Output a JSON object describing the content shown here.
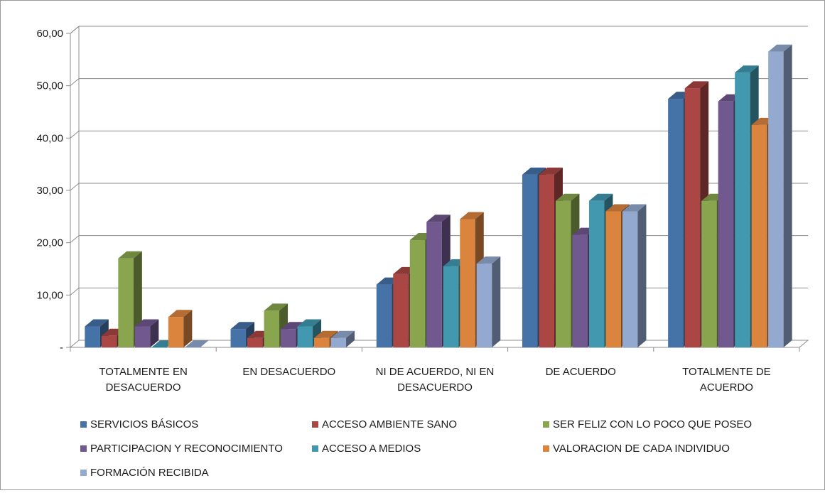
{
  "chart_data": {
    "type": "bar",
    "categories": [
      [
        "TOTALMENTE EN",
        "DESACUERDO"
      ],
      [
        "EN DESACUERDO"
      ],
      [
        "NI DE ACUERDO, NI EN",
        "DESACUERDO"
      ],
      [
        "DE ACUERDO"
      ],
      [
        "TOTALMENTE DE",
        "ACUERDO"
      ]
    ],
    "series": [
      {
        "name": "SERVICIOS BÁSICOS",
        "color": "#4572a7",
        "values": [
          4.0,
          3.5,
          12.0,
          33.0,
          47.5
        ]
      },
      {
        "name": "ACCESO AMBIENTE SANO",
        "color": "#aa4643",
        "values": [
          2.2,
          1.8,
          14.0,
          33.0,
          49.5
        ]
      },
      {
        "name": "SER FELIZ CON LO POCO QUE POSEO",
        "color": "#89a54e",
        "values": [
          17.0,
          7.0,
          20.5,
          28.0,
          28.0
        ]
      },
      {
        "name": "PARTICIPACION Y RECONOCIMIENTO",
        "color": "#71588f",
        "values": [
          4.0,
          3.5,
          24.0,
          21.5,
          47.0
        ]
      },
      {
        "name": "ACCESO A MEDIOS",
        "color": "#4198af",
        "values": [
          0.0,
          4.0,
          15.5,
          28.0,
          52.5
        ]
      },
      {
        "name": "VALORACION DE CADA INDIVIDUO",
        "color": "#db843d",
        "values": [
          5.8,
          1.8,
          24.5,
          26.0,
          42.5
        ]
      },
      {
        "name": "FORMACIÓN RECIBIDA",
        "color": "#93a9cf",
        "values": [
          0.0,
          1.8,
          16.0,
          26.0,
          56.5
        ]
      }
    ],
    "yticks": [
      "-",
      "10,00",
      "20,00",
      "30,00",
      "40,00",
      "50,00",
      "60,00"
    ],
    "ylim": [
      0,
      60
    ],
    "grid": true,
    "legend_position": "bottom"
  }
}
